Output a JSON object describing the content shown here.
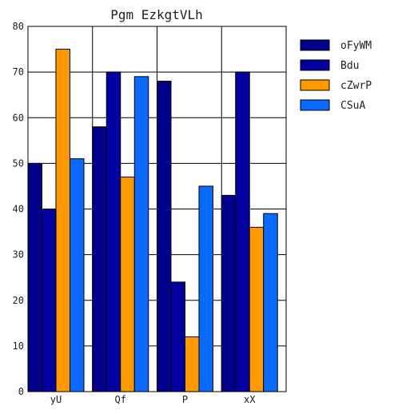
{
  "chart_data": {
    "type": "bar",
    "title": "Pgm EzkgtVLh",
    "xlabel": "",
    "ylabel": "",
    "categories": [
      "yU",
      "Qf",
      "P",
      "xX"
    ],
    "ylim": [
      0,
      80
    ],
    "yticks": [
      0,
      10,
      20,
      30,
      40,
      50,
      60,
      70,
      80
    ],
    "grid": true,
    "legend": "top-right",
    "series": [
      {
        "name": "oFyWM",
        "color": "#00008b",
        "values": [
          50,
          58,
          68,
          43
        ]
      },
      {
        "name": "Bdu",
        "color": "#0000a0",
        "values": [
          40,
          70,
          24,
          70
        ]
      },
      {
        "name": "cZwrP",
        "color": "#ff9900",
        "values": [
          75,
          47,
          12,
          36
        ]
      },
      {
        "name": "CSuA",
        "color": "#0a6aff",
        "values": [
          51,
          69,
          45,
          39
        ]
      }
    ]
  }
}
